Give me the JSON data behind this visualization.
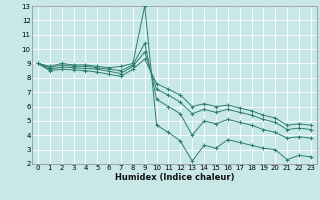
{
  "xlabel": "Humidex (Indice chaleur)",
  "bg_color": "#c8e8e8",
  "grid_color": "#ffffff",
  "line_color": "#2e7d6e",
  "xlim": [
    -0.5,
    23.5
  ],
  "ylim": [
    2,
    13
  ],
  "xticks": [
    0,
    1,
    2,
    3,
    4,
    5,
    6,
    7,
    8,
    9,
    10,
    11,
    12,
    13,
    14,
    15,
    16,
    17,
    18,
    19,
    20,
    21,
    22,
    23
  ],
  "yticks": [
    2,
    3,
    4,
    5,
    6,
    7,
    8,
    9,
    10,
    11,
    12,
    13
  ],
  "series": [
    {
      "x": [
        0,
        1,
        2,
        3,
        4,
        5,
        6,
        7,
        8,
        9,
        10,
        11,
        12,
        13,
        14,
        15,
        16,
        17,
        18,
        19,
        20,
        21,
        22,
        23
      ],
      "y": [
        9.0,
        8.8,
        9.0,
        8.9,
        8.9,
        8.8,
        8.7,
        8.8,
        9.0,
        13.0,
        4.7,
        4.2,
        3.6,
        2.2,
        3.3,
        3.1,
        3.7,
        3.5,
        3.3,
        3.1,
        3.0,
        2.3,
        2.6,
        2.5
      ]
    },
    {
      "x": [
        0,
        1,
        2,
        3,
        4,
        5,
        6,
        7,
        8,
        9,
        10,
        11,
        12,
        13,
        14,
        15,
        16,
        17,
        18,
        19,
        20,
        21,
        22,
        23
      ],
      "y": [
        9.0,
        8.7,
        8.9,
        8.8,
        8.8,
        8.7,
        8.6,
        8.5,
        8.9,
        10.4,
        6.5,
        6.0,
        5.5,
        4.0,
        5.0,
        4.8,
        5.1,
        4.9,
        4.7,
        4.4,
        4.2,
        3.8,
        3.9,
        3.8
      ]
    },
    {
      "x": [
        0,
        1,
        2,
        3,
        4,
        5,
        6,
        7,
        8,
        9,
        10,
        11,
        12,
        13,
        14,
        15,
        16,
        17,
        18,
        19,
        20,
        21,
        22,
        23
      ],
      "y": [
        9.0,
        8.6,
        8.75,
        8.7,
        8.65,
        8.6,
        8.45,
        8.3,
        8.8,
        9.8,
        7.2,
        6.8,
        6.3,
        5.5,
        5.8,
        5.6,
        5.8,
        5.6,
        5.4,
        5.1,
        4.9,
        4.4,
        4.5,
        4.4
      ]
    },
    {
      "x": [
        0,
        1,
        2,
        3,
        4,
        5,
        6,
        7,
        8,
        9,
        10,
        11,
        12,
        13,
        14,
        15,
        16,
        17,
        18,
        19,
        20,
        21,
        22,
        23
      ],
      "y": [
        9.0,
        8.5,
        8.6,
        8.55,
        8.5,
        8.4,
        8.25,
        8.1,
        8.6,
        9.3,
        7.6,
        7.2,
        6.8,
        6.0,
        6.2,
        6.0,
        6.1,
        5.9,
        5.7,
        5.4,
        5.2,
        4.7,
        4.8,
        4.7
      ]
    }
  ]
}
